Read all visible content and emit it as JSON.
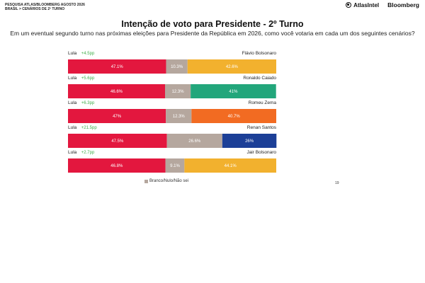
{
  "header": {
    "survey_line1": "PESQUISA ATLAS/BLOOMBERG AGOSTO 2026",
    "survey_line2": "BRASIL > CENÁRIOS DE 2º TURNO",
    "brand_atlas": "AtlasIntel",
    "brand_bloomberg": "Bloomberg"
  },
  "page_number": "19",
  "colors": {
    "lula": "#e3173e",
    "branco": "#b5a79e",
    "bolsonaro": "#f2b12e",
    "caiado": "#22a67b",
    "zema": "#f26b22",
    "renan": "#1c3f97",
    "diff": "#3fae49"
  },
  "chart_data": {
    "type": "bar",
    "stacked": true,
    "orientation": "horizontal",
    "title": "Intenção de voto para Presidente - 2º Turno",
    "subtitle": "Em um eventual segundo turno nas próximas eleições para Presidente da República em 2026, como você votaria em cada um dos seguintes cenários?",
    "xlim": [
      0,
      100
    ],
    "legend": {
      "position": "bottom",
      "label": "Branco/Nulo/Não sei"
    },
    "scenarios": [
      {
        "left_name": "Lula",
        "diff": "+4.5pp",
        "right_name": "Flávio Bolsonaro",
        "lula": 47.1,
        "branco": 10.3,
        "opponent": 42.6,
        "lula_label": "47.1%",
        "branco_label": "10.3%",
        "opponent_label": "42.6%",
        "opponent_color": "#f2b12e"
      },
      {
        "left_name": "Lula",
        "diff": "+5.6pp",
        "right_name": "Ronaldo Caiado",
        "lula": 46.6,
        "branco": 12.3,
        "opponent": 41,
        "lula_label": "46.6%",
        "branco_label": "12.3%",
        "opponent_label": "41%",
        "opponent_color": "#22a67b"
      },
      {
        "left_name": "Lula",
        "diff": "+6.3pp",
        "right_name": "Romeu Zema",
        "lula": 47,
        "branco": 12.3,
        "opponent": 40.7,
        "lula_label": "47%",
        "branco_label": "12.3%",
        "opponent_label": "40.7%",
        "opponent_color": "#f26b22"
      },
      {
        "left_name": "Lula",
        "diff": "+21.5pp",
        "right_name": "Renan Santos",
        "lula": 47.5,
        "branco": 26.6,
        "opponent": 26,
        "lula_label": "47.5%",
        "branco_label": "26.6%",
        "opponent_label": "26%",
        "opponent_color": "#1c3f97"
      },
      {
        "left_name": "Lula",
        "diff": "+2.7pp",
        "right_name": "Jair Bolsonaro",
        "lula": 46.8,
        "branco": 9.1,
        "opponent": 44.1,
        "lula_label": "46.8%",
        "branco_label": "9.1%",
        "opponent_label": "44.1%",
        "opponent_color": "#f2b12e"
      }
    ]
  }
}
